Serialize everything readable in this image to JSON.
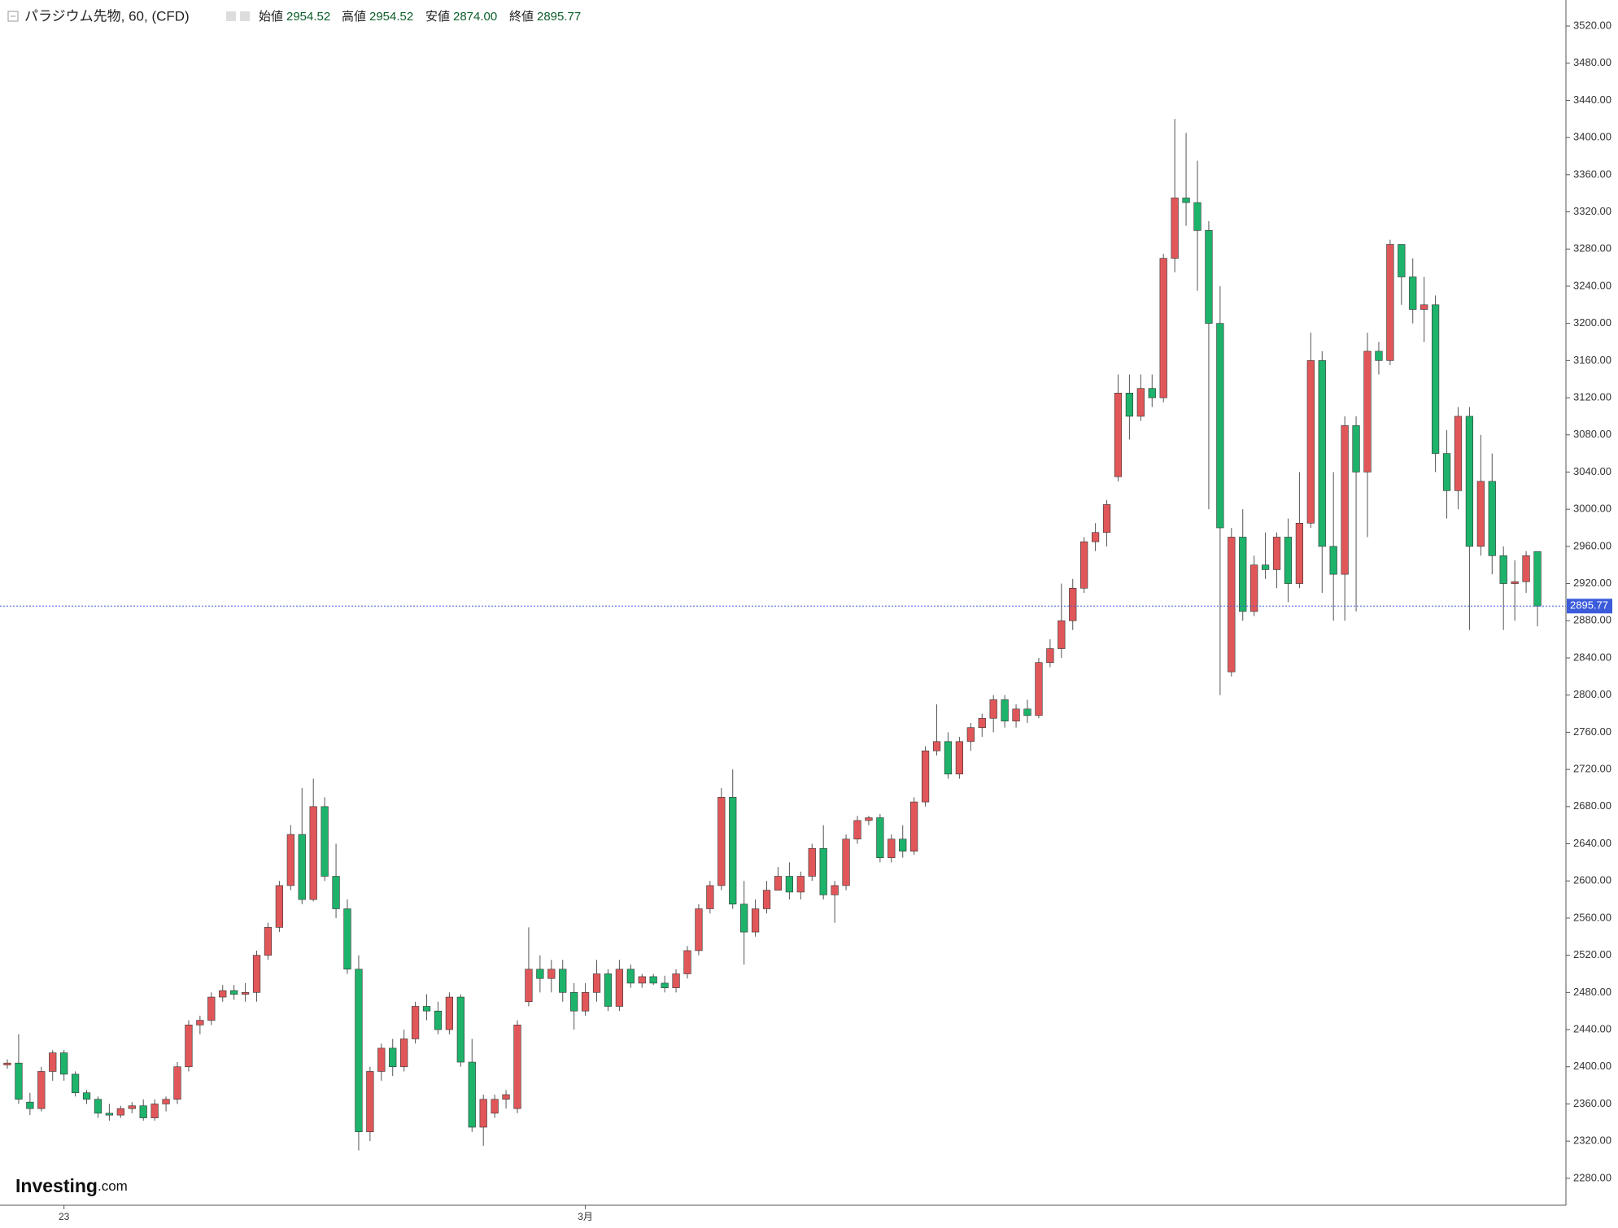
{
  "header": {
    "title": "パラジウム先物, 60, (CFD)",
    "open_label": "始値",
    "open": 2954.52,
    "high_label": "高値",
    "high": 2954.52,
    "low_label": "安値",
    "low": {
      "value": 2874,
      "label": "2874.00"
    },
    "close_label": "終値",
    "close": 2895.77
  },
  "logo": {
    "name": "Investing",
    "suffix": ".com"
  },
  "chart_data": {
    "type": "candlestick",
    "up_color": "#e15759",
    "down_color": "#1db36b",
    "line_color": "#3b5bdb",
    "ylim": [
      2251,
      3548
    ],
    "yticks": [
      {
        "value": 2280,
        "label": "2280.00"
      },
      {
        "value": 2320,
        "label": "2320.00"
      },
      {
        "value": 2360,
        "label": "2360.00"
      },
      {
        "value": 2400,
        "label": "2400.00"
      },
      {
        "value": 2440,
        "label": "2440.00"
      },
      {
        "value": 2480,
        "label": "2480.00"
      },
      {
        "value": 2520,
        "label": "2520.00"
      },
      {
        "value": 2560,
        "label": "2560.00"
      },
      {
        "value": 2600,
        "label": "2600.00"
      },
      {
        "value": 2640,
        "label": "2640.00"
      },
      {
        "value": 2680,
        "label": "2680.00"
      },
      {
        "value": 2720,
        "label": "2720.00"
      },
      {
        "value": 2760,
        "label": "2760.00"
      },
      {
        "value": 2800,
        "label": "2800.00"
      },
      {
        "value": 2840,
        "label": "2840.00"
      },
      {
        "value": 2880,
        "label": "2880.00"
      },
      {
        "value": 2920,
        "label": "2920.00"
      },
      {
        "value": 2960,
        "label": "2960.00"
      },
      {
        "value": 3000,
        "label": "3000.00"
      },
      {
        "value": 3040,
        "label": "3040.00"
      },
      {
        "value": 3080,
        "label": "3080.00"
      },
      {
        "value": 3120,
        "label": "3120.00"
      },
      {
        "value": 3160,
        "label": "3160.00"
      },
      {
        "value": 3200,
        "label": "3200.00"
      },
      {
        "value": 3240,
        "label": "3240.00"
      },
      {
        "value": 3280,
        "label": "3280.00"
      },
      {
        "value": 3320,
        "label": "3320.00"
      },
      {
        "value": 3360,
        "label": "3360.00"
      },
      {
        "value": 3400,
        "label": "3400.00"
      },
      {
        "value": 3440,
        "label": "3440.00"
      },
      {
        "value": 3480,
        "label": "3480.00"
      },
      {
        "value": 3520,
        "label": "3520.00"
      }
    ],
    "categories": [
      null,
      null,
      null,
      null,
      null,
      "23",
      null,
      null,
      null,
      null,
      null,
      null,
      null,
      null,
      null,
      null,
      null,
      null,
      null,
      null,
      null,
      null,
      null,
      null,
      null,
      null,
      null,
      null,
      null,
      null,
      null,
      null,
      null,
      null,
      null,
      null,
      null,
      null,
      null,
      null,
      null,
      null,
      null,
      null,
      null,
      null,
      null,
      null,
      null,
      null,
      null,
      "3月",
      null,
      null,
      null,
      null,
      null,
      null,
      null,
      null,
      null,
      null,
      null,
      null,
      null,
      null,
      null,
      null,
      null,
      null,
      null,
      null,
      null,
      null,
      null,
      null,
      null,
      null,
      null,
      null,
      null,
      null,
      null,
      null,
      null,
      null,
      null,
      null,
      null,
      null,
      null,
      null,
      null,
      null,
      null,
      null,
      null,
      null,
      null,
      null,
      null,
      null,
      null,
      null,
      null,
      null,
      null,
      null,
      null,
      null,
      null,
      null,
      null,
      null,
      null,
      null,
      null,
      null,
      null,
      null,
      null,
      null,
      null,
      null,
      null,
      null,
      null,
      null,
      null,
      null,
      null,
      null,
      null,
      null,
      null,
      null
    ],
    "open": [
      2402,
      2404,
      2362,
      2355,
      2395,
      2415,
      2392,
      2372,
      2365,
      2350,
      2348,
      2355,
      2358,
      2345,
      2360,
      2365,
      2400,
      2445,
      2450,
      2475,
      2482,
      2478,
      2480,
      2520,
      2550,
      2595,
      2650,
      2580,
      2680,
      2605,
      2570,
      2505,
      2330,
      2395,
      2420,
      2400,
      2430,
      2465,
      2460,
      2440,
      2475,
      2405,
      2335,
      2350,
      2365,
      2355,
      2470,
      2505,
      2495,
      2505,
      2480,
      2460,
      2480,
      2500,
      2465,
      2505,
      2490,
      2497,
      2490,
      2485,
      2500,
      2525,
      2570,
      2595,
      2690,
      2575,
      2545,
      2570,
      2590,
      2605,
      2588,
      2605,
      2635,
      2585,
      2595,
      2645,
      2665,
      2668,
      2625,
      2645,
      2632,
      2685,
      2740,
      2750,
      2715,
      2750,
      2765,
      2775,
      2795,
      2772,
      2785,
      2778,
      2835,
      2850,
      2880,
      2915,
      2965,
      2975,
      3035,
      3125,
      3100,
      3130,
      3120,
      3270,
      3335,
      3330,
      3300,
      3200,
      2825,
      2970,
      2890,
      2940,
      2935,
      2970,
      2920,
      2985,
      3160,
      2960,
      2930,
      3090,
      3040,
      3170,
      3160,
      3285,
      3250,
      3215,
      3220,
      3060,
      3020,
      3100,
      2960,
      3030,
      2950,
      2920,
      2922,
      2954.52
    ],
    "high": [
      2408,
      2435,
      2372,
      2400,
      2418,
      2418,
      2395,
      2375,
      2368,
      2360,
      2358,
      2362,
      2365,
      2365,
      2368,
      2405,
      2450,
      2455,
      2480,
      2488,
      2488,
      2490,
      2525,
      2555,
      2600,
      2660,
      2700,
      2710,
      2690,
      2640,
      2580,
      2520,
      2400,
      2425,
      2430,
      2440,
      2470,
      2478,
      2470,
      2480,
      2478,
      2430,
      2370,
      2370,
      2375,
      2450,
      2550,
      2520,
      2515,
      2515,
      2490,
      2490,
      2515,
      2505,
      2515,
      2510,
      2500,
      2500,
      2498,
      2505,
      2530,
      2575,
      2600,
      2700,
      2720,
      2600,
      2580,
      2600,
      2615,
      2620,
      2610,
      2640,
      2660,
      2600,
      2650,
      2670,
      2670,
      2672,
      2650,
      2660,
      2690,
      2745,
      2790,
      2760,
      2755,
      2770,
      2780,
      2800,
      2800,
      2790,
      2795,
      2840,
      2860,
      2920,
      2925,
      2970,
      2985,
      3010,
      3145,
      3145,
      3145,
      3145,
      3275,
      3420,
      3405,
      3375,
      3310,
      3240,
      2980,
      3000,
      2950,
      2975,
      2975,
      2990,
      3040,
      3190,
      3170,
      3040,
      3100,
      3100,
      3190,
      3180,
      3290,
      3285,
      3270,
      3250,
      3230,
      3085,
      3110,
      3110,
      3080,
      3060,
      2960,
      2945,
      2955,
      2954.52
    ],
    "low": [
      2398,
      2360,
      2348,
      2352,
      2385,
      2385,
      2368,
      2360,
      2345,
      2342,
      2345,
      2350,
      2342,
      2342,
      2352,
      2360,
      2395,
      2435,
      2445,
      2470,
      2472,
      2470,
      2470,
      2515,
      2545,
      2590,
      2575,
      2578,
      2600,
      2560,
      2500,
      2310,
      2320,
      2385,
      2390,
      2395,
      2425,
      2450,
      2435,
      2435,
      2400,
      2330,
      2315,
      2345,
      2355,
      2350,
      2465,
      2480,
      2480,
      2470,
      2440,
      2455,
      2470,
      2460,
      2460,
      2485,
      2485,
      2488,
      2480,
      2480,
      2495,
      2520,
      2565,
      2590,
      2570,
      2510,
      2540,
      2565,
      2595,
      2580,
      2580,
      2600,
      2580,
      2555,
      2590,
      2640,
      2660,
      2620,
      2620,
      2625,
      2628,
      2680,
      2735,
      2710,
      2710,
      2740,
      2755,
      2760,
      2765,
      2765,
      2770,
      2775,
      2830,
      2840,
      2870,
      2910,
      2955,
      2960,
      3030,
      3075,
      3095,
      3110,
      3115,
      3255,
      3305,
      3235,
      3000,
      2800,
      2820,
      2880,
      2885,
      2925,
      2915,
      2900,
      2915,
      2980,
      2910,
      2880,
      2880,
      2890,
      2970,
      3145,
      3155,
      3220,
      3200,
      3180,
      3040,
      2990,
      3000,
      2870,
      2950,
      2930,
      2870,
      2880,
      2910,
      2874
    ],
    "close": [
      2404,
      2365,
      2355,
      2395,
      2415,
      2392,
      2372,
      2365,
      2350,
      2348,
      2355,
      2358,
      2345,
      2360,
      2365,
      2400,
      2445,
      2450,
      2475,
      2482,
      2478,
      2480,
      2520,
      2550,
      2595,
      2650,
      2580,
      2680,
      2605,
      2570,
      2505,
      2330,
      2395,
      2420,
      2400,
      2430,
      2465,
      2460,
      2440,
      2475,
      2405,
      2335,
      2365,
      2365,
      2370,
      2445,
      2505,
      2495,
      2505,
      2480,
      2460,
      2480,
      2500,
      2465,
      2505,
      2490,
      2497,
      2490,
      2485,
      2500,
      2525,
      2570,
      2595,
      2690,
      2575,
      2545,
      2570,
      2590,
      2605,
      2588,
      2605,
      2635,
      2585,
      2595,
      2645,
      2665,
      2668,
      2625,
      2645,
      2632,
      2685,
      2740,
      2750,
      2715,
      2750,
      2765,
      2775,
      2795,
      2772,
      2785,
      2778,
      2835,
      2850,
      2880,
      2915,
      2965,
      2975,
      3005,
      3125,
      3100,
      3130,
      3120,
      3270,
      3335,
      3330,
      3300,
      3200,
      2980,
      2970,
      2890,
      2940,
      2935,
      2970,
      2920,
      2985,
      3160,
      2960,
      2930,
      3090,
      3040,
      3170,
      3160,
      3285,
      3250,
      3215,
      3220,
      3060,
      3020,
      3100,
      2960,
      3030,
      2950,
      2920,
      2922,
      2950,
      2895.77
    ]
  }
}
